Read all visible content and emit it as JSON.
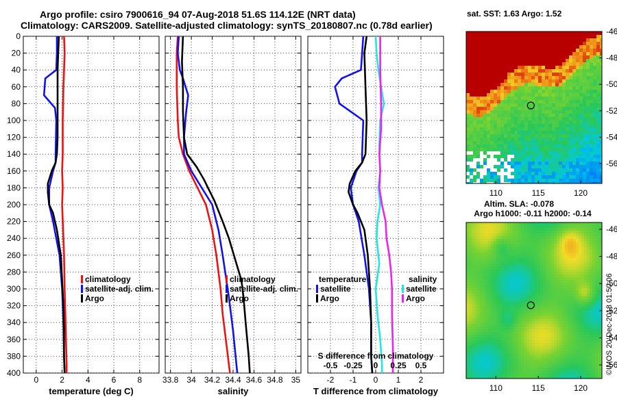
{
  "title": {
    "line1": "Argo profile: csiro 7900616_94 07-Aug-2018 51.6S 114.12E (NRT data)",
    "line2": "Climatology: CARS2009. Satellite-adjusted climatology: synTS_20180807.nc (0.78d earlier)"
  },
  "colors": {
    "climatology": "#ee1111",
    "satellite": "#1111ee",
    "argo": "#000000",
    "satellite_salinity": "#22e5e5",
    "argo_salinity": "#ee22ee"
  },
  "chart_data": [
    {
      "type": "line",
      "panel": "temperature",
      "xlabel": "temperature (deg C)",
      "xlim": [
        -1,
        9.5
      ],
      "xticks": [
        0,
        2,
        4,
        6,
        8
      ],
      "xtick_labels": [
        "0",
        "2",
        "4",
        "6",
        "8"
      ],
      "ylim": [
        400,
        0
      ],
      "yticks": [
        0,
        20,
        40,
        60,
        80,
        100,
        120,
        140,
        160,
        180,
        200,
        220,
        240,
        260,
        280,
        300,
        320,
        340,
        360,
        380,
        400
      ],
      "ytick_labels": [
        "0",
        "20",
        "40",
        "60",
        "80",
        "100",
        "120",
        "140",
        "160",
        "180",
        "200",
        "220",
        "240",
        "260",
        "280",
        "300",
        "320",
        "340",
        "360",
        "380",
        "400"
      ],
      "legend": [
        "climatology",
        "satellite-adj. clim.",
        "Argo"
      ],
      "series": [
        {
          "name": "climatology",
          "color_key": "climatology",
          "x": [
            2.15,
            2.2,
            2.1,
            2.05,
            2.05,
            2.0,
            2.05,
            2.0,
            2.1,
            2.15,
            2.2,
            2.25,
            2.3,
            2.35,
            2.35
          ],
          "y": [
            0,
            20,
            60,
            100,
            140,
            160,
            180,
            200,
            240,
            260,
            300,
            330,
            360,
            390,
            400
          ]
        },
        {
          "name": "satellite-adj. clim.",
          "color_key": "satellite",
          "x": [
            1.6,
            1.6,
            1.55,
            0.7,
            0.6,
            1.45,
            1.55,
            1.5,
            1.5,
            1.3,
            1.0,
            1.0,
            1.3,
            1.8,
            2.0,
            2.1,
            2.15,
            2.2
          ],
          "y": [
            0,
            20,
            40,
            50,
            70,
            85,
            100,
            140,
            150,
            160,
            180,
            200,
            220,
            260,
            300,
            340,
            380,
            400
          ]
        },
        {
          "name": "Argo",
          "color_key": "argo",
          "x": [
            1.75,
            1.7,
            1.65,
            1.65,
            1.65,
            1.6,
            1.5,
            1.2,
            0.9,
            0.9,
            1.0,
            1.3,
            1.6,
            1.9,
            2.0,
            2.1,
            2.15,
            2.15,
            2.2
          ],
          "y": [
            0,
            20,
            40,
            80,
            120,
            140,
            150,
            160,
            175,
            185,
            200,
            210,
            230,
            260,
            290,
            320,
            350,
            380,
            400
          ]
        }
      ]
    },
    {
      "type": "line",
      "panel": "salinity",
      "xlabel": "salinity",
      "xlim": [
        33.75,
        35.05
      ],
      "xticks": [
        33.8,
        34.0,
        34.2,
        34.4,
        34.6,
        34.8,
        35.0
      ],
      "xtick_labels": [
        "33.8",
        "34",
        "34.2",
        "34.4",
        "34.6",
        "34.8",
        "35"
      ],
      "ylim": [
        400,
        0
      ],
      "legend": [
        "climatology",
        "satellite-adj. clim.",
        "Argo"
      ],
      "series": [
        {
          "name": "climatology",
          "color_key": "climatology",
          "x": [
            33.87,
            33.86,
            33.86,
            33.87,
            33.88,
            33.92,
            33.98,
            34.06,
            34.14,
            34.2,
            34.24,
            34.28,
            34.3,
            34.34,
            34.37
          ],
          "y": [
            0,
            20,
            60,
            100,
            120,
            140,
            160,
            180,
            200,
            230,
            260,
            300,
            330,
            370,
            400
          ]
        },
        {
          "name": "satellite-adj. clim.",
          "color_key": "satellite",
          "x": [
            33.88,
            33.87,
            33.89,
            33.92,
            33.97,
            33.95,
            33.93,
            33.93,
            34.0,
            34.1,
            34.2,
            34.26,
            34.3,
            34.36,
            34.4,
            34.44
          ],
          "y": [
            0,
            20,
            40,
            50,
            70,
            90,
            120,
            140,
            160,
            180,
            200,
            230,
            260,
            310,
            350,
            400
          ]
        },
        {
          "name": "Argo",
          "color_key": "argo",
          "x": [
            33.92,
            33.91,
            33.92,
            33.92,
            33.93,
            33.96,
            34.05,
            34.12,
            34.16,
            34.22,
            34.3,
            34.36,
            34.42,
            34.48,
            34.5,
            34.52,
            34.55,
            34.56
          ],
          "y": [
            0,
            30,
            60,
            90,
            120,
            140,
            155,
            170,
            180,
            195,
            220,
            240,
            265,
            290,
            310,
            340,
            380,
            400
          ]
        }
      ]
    },
    {
      "type": "line",
      "panel": "difference",
      "xlabel": "T difference from climatology",
      "xlabel_top": "S difference from climatology",
      "xlim": [
        -3,
        3
      ],
      "xticks": [
        -2,
        -1,
        0,
        1,
        2
      ],
      "xtick_labels": [
        "-2",
        "-1",
        "0",
        "1",
        "2"
      ],
      "sticks": [
        -0.5,
        -0.25,
        0,
        0.25,
        0.5
      ],
      "stick_labels": [
        "-0.5",
        "-0.25",
        "0",
        "0.25",
        "0.5"
      ],
      "ylim": [
        400,
        0
      ],
      "legend_temperature_title": "temperature",
      "legend_salinity_title": "salinity",
      "legend_labels": [
        "satellite",
        "Argo"
      ],
      "series": [
        {
          "name": "T satellite",
          "color_key": "satellite",
          "x": [
            -0.55,
            -0.6,
            -0.65,
            -1.5,
            -1.8,
            -1.6,
            -0.55,
            -0.6,
            -0.6,
            -0.85,
            -1.1,
            -1.0,
            -0.75,
            -0.5,
            -0.3,
            -0.2,
            -0.2,
            -0.15
          ],
          "y": [
            0,
            20,
            40,
            50,
            60,
            80,
            100,
            140,
            150,
            160,
            180,
            200,
            220,
            260,
            300,
            340,
            380,
            400
          ]
        },
        {
          "name": "T Argo",
          "color_key": "argo",
          "x": [
            -0.4,
            -0.5,
            -0.45,
            -0.4,
            -0.45,
            -0.6,
            -0.9,
            -1.15,
            -1.2,
            -1.0,
            -0.8,
            -0.5,
            -0.35,
            -0.25,
            -0.2,
            -0.2,
            -0.15
          ],
          "y": [
            0,
            20,
            60,
            100,
            140,
            150,
            160,
            175,
            185,
            200,
            210,
            230,
            260,
            300,
            340,
            380,
            400
          ]
        },
        {
          "name": "S satellite",
          "color_key": "satellite_salinity",
          "x": [
            0.0,
            0.01,
            0.03,
            0.06,
            0.09,
            0.05,
            0.04,
            0.05,
            0.03,
            0.05,
            0.02,
            0.01,
            0.04,
            0.0,
            0.02,
            0.05,
            0.07,
            0.07
          ],
          "y": [
            0,
            20,
            40,
            60,
            80,
            100,
            130,
            160,
            180,
            200,
            220,
            240,
            270,
            300,
            330,
            360,
            390,
            400
          ]
        },
        {
          "name": "S Argo",
          "color_key": "argo_salinity",
          "x": [
            0.05,
            0.05,
            0.06,
            0.06,
            0.04,
            0.05,
            0.04,
            0.07,
            0.11,
            0.12,
            0.15,
            0.17,
            0.18,
            0.18,
            0.19,
            0.19
          ],
          "y": [
            0,
            40,
            80,
            110,
            140,
            160,
            180,
            200,
            220,
            240,
            260,
            280,
            300,
            330,
            370,
            400
          ]
        }
      ]
    },
    {
      "type": "heatmap",
      "panel": "sst_map",
      "title": "sat. SST: 1.63 Argo: 1.52",
      "xlim": [
        106.5,
        122.5
      ],
      "ylim": [
        -57.5,
        -46
      ],
      "xticks": [
        110,
        115,
        120
      ],
      "xtick_labels": [
        "110",
        "115",
        "120"
      ],
      "yticks": [
        -46,
        -48,
        -50,
        -52,
        -54,
        -56
      ],
      "ytick_labels": [
        "-46",
        "-48",
        "-50",
        "-52",
        "-54",
        "-56"
      ],
      "marker": {
        "lon": 114.12,
        "lat": -51.6
      }
    },
    {
      "type": "heatmap",
      "panel": "sla_map",
      "title_line1": "Altim. SLA: -0.078",
      "title_line2": "Argo h1000: -0.11 h2000: -0.14",
      "xlim": [
        106.5,
        122.5
      ],
      "ylim": [
        -57,
        -45.5
      ],
      "xticks": [
        110,
        115,
        120
      ],
      "xtick_labels": [
        "110",
        "115",
        "120"
      ],
      "yticks": [
        -46,
        -48,
        -50,
        -52,
        -54,
        -56
      ],
      "ytick_labels": [
        "-46",
        "-48",
        "-50",
        "-52",
        "-54",
        "-56"
      ],
      "marker": {
        "lon": 114.12,
        "lat": -51.6
      }
    }
  ],
  "watermark": "©IMOS 20-Dec-2018 01:50:06"
}
